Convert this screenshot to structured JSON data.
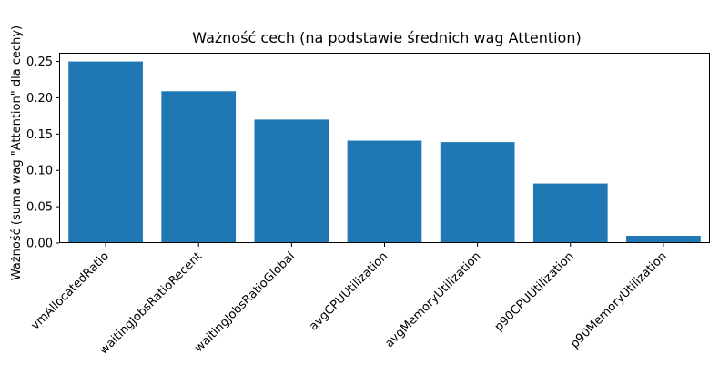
{
  "chart_data": {
    "type": "bar",
    "title": "Ważność cech (na podstawie średnich wag Attention)",
    "xlabel": "",
    "ylabel": "Ważność (suma wag \"Attention\" dla cechy)",
    "categories": [
      "vmAllocatedRatio",
      "waitingJobsRatioRecent",
      "waitingJobsRatioGlobal",
      "avgCPUUtilization",
      "avgMemoryUtilization",
      "p90CPUUtilization",
      "p90MemoryUtilization"
    ],
    "values": [
      0.25,
      0.209,
      0.17,
      0.141,
      0.139,
      0.082,
      0.01
    ],
    "ylim": [
      0,
      0.262
    ],
    "yticks": [
      0.0,
      0.05,
      0.1,
      0.15,
      0.2,
      0.25
    ],
    "ytick_labels": [
      "0.00",
      "0.05",
      "0.10",
      "0.15",
      "0.20",
      "0.25"
    ],
    "grid": false,
    "bar_color": "#1f77b4"
  }
}
